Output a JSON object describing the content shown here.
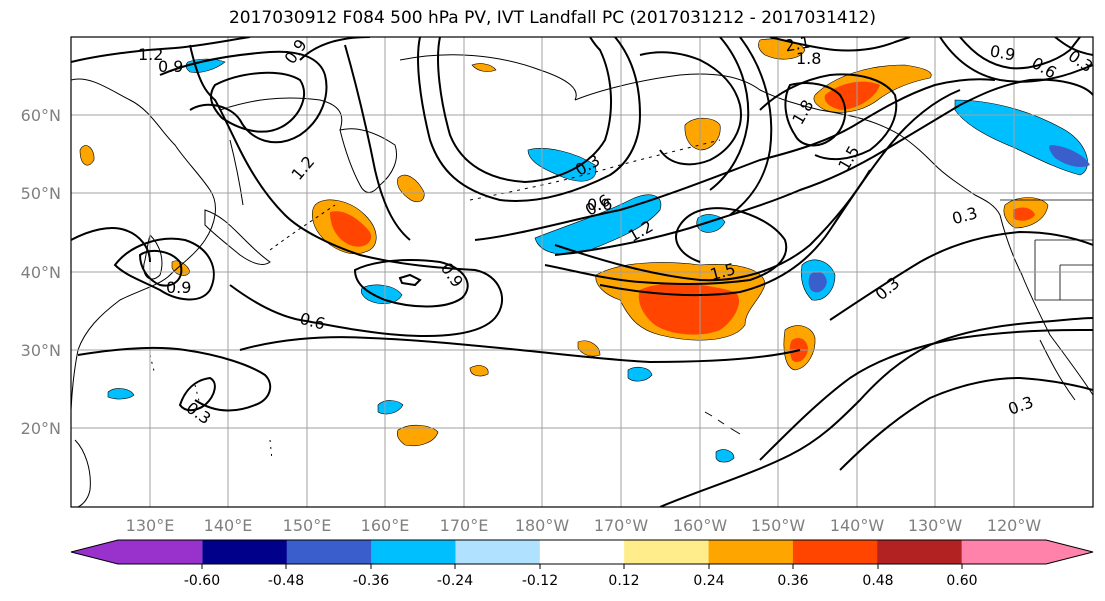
{
  "title": "2017030912 F084 500 hPa PV, IVT Landfall PC (2017031212 - 2017031412)",
  "lat_labels": [
    "60°N",
    "50°N",
    "40°N",
    "30°N",
    "20°N"
  ],
  "lon_labels": [
    "130°E",
    "140°E",
    "150°E",
    "160°E",
    "170°E",
    "180°W",
    "170°W",
    "160°W",
    "150°W",
    "140°W",
    "130°W",
    "120°W"
  ],
  "contour_labels": [
    "1.2",
    "0.9",
    "0.9",
    "1.2",
    "0.9",
    "0.6",
    "0.9",
    "0.6",
    "0.3",
    "0.3",
    "0.6",
    "1.2",
    "1.5",
    "1.8",
    "1.5",
    "1.8",
    "2.1",
    "0.9",
    "0.6",
    "0.3",
    "0.3",
    "0.3",
    "0.3"
  ],
  "colorbar": {
    "ticks": [
      "-0.60",
      "-0.48",
      "-0.36",
      "-0.24",
      "-0.12",
      "0.12",
      "0.24",
      "0.36",
      "0.48",
      "0.60"
    ],
    "colors": [
      "#9932cc",
      "#00008b",
      "#3a5fcd",
      "#00bfff",
      "#b0e2ff",
      "#ffffff",
      "#ffec8b",
      "#ffa500",
      "#ff4500",
      "#b22222",
      "#ff82ab"
    ]
  }
}
